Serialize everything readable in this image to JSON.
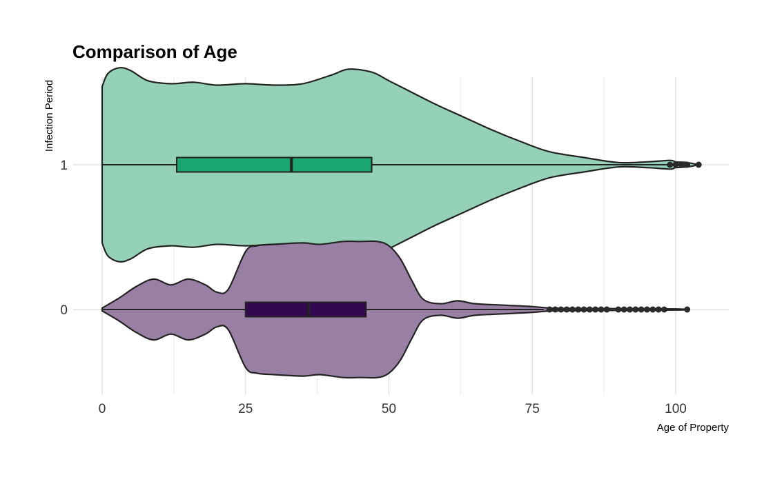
{
  "chart_data": {
    "type": "violin",
    "title": "Comparison of Age",
    "xlabel": "Age of Property",
    "ylabel": "Infection Period",
    "xlim": [
      0,
      109
    ],
    "x_ticks": [
      0,
      25,
      50,
      75,
      100
    ],
    "grid": true,
    "legend": "none",
    "groups": [
      {
        "category": "1",
        "fill": "#94d1b7",
        "box_fill": "#1ba573",
        "box": {
          "whisker_low": 0,
          "q1": 13,
          "median": 33,
          "q3": 47,
          "whisker_high": 99
        },
        "outliers": [
          99,
          100,
          101,
          102,
          104
        ],
        "density": [
          [
            0,
            0.54
          ],
          [
            1,
            0.63
          ],
          [
            3,
            0.67
          ],
          [
            5,
            0.65
          ],
          [
            8,
            0.58
          ],
          [
            12,
            0.56
          ],
          [
            16,
            0.57
          ],
          [
            20,
            0.55
          ],
          [
            25,
            0.56
          ],
          [
            30,
            0.55
          ],
          [
            35,
            0.56
          ],
          [
            40,
            0.62
          ],
          [
            43,
            0.66
          ],
          [
            47,
            0.64
          ],
          [
            50,
            0.58
          ],
          [
            54,
            0.5
          ],
          [
            58,
            0.42
          ],
          [
            63,
            0.33
          ],
          [
            68,
            0.24
          ],
          [
            73,
            0.16
          ],
          [
            78,
            0.09
          ],
          [
            84,
            0.05
          ],
          [
            90,
            0.015
          ],
          [
            95,
            0.02
          ],
          [
            99,
            0.03
          ],
          [
            100,
            0.02
          ],
          [
            102,
            0.015
          ],
          [
            104,
            0.0
          ]
        ]
      },
      {
        "category": "0",
        "fill": "#9a7fa4",
        "box_fill": "#330850",
        "box": {
          "whisker_low": 0,
          "q1": 25,
          "median": 36,
          "q3": 46,
          "whisker_high": 77
        },
        "outliers": [
          78,
          79,
          80,
          81,
          82,
          83,
          84,
          85,
          86,
          87,
          88,
          90,
          91,
          92,
          93,
          94,
          95,
          96,
          97,
          98,
          102
        ],
        "density": [
          [
            0,
            0.01
          ],
          [
            3,
            0.08
          ],
          [
            6,
            0.16
          ],
          [
            9,
            0.21
          ],
          [
            12,
            0.17
          ],
          [
            15,
            0.21
          ],
          [
            18,
            0.17
          ],
          [
            20,
            0.12
          ],
          [
            22,
            0.14
          ],
          [
            25,
            0.4
          ],
          [
            27,
            0.44
          ],
          [
            30,
            0.45
          ],
          [
            35,
            0.46
          ],
          [
            38,
            0.45
          ],
          [
            42,
            0.47
          ],
          [
            45,
            0.47
          ],
          [
            48,
            0.47
          ],
          [
            50,
            0.44
          ],
          [
            52,
            0.35
          ],
          [
            54,
            0.2
          ],
          [
            56,
            0.07
          ],
          [
            59,
            0.04
          ],
          [
            62,
            0.06
          ],
          [
            65,
            0.04
          ],
          [
            70,
            0.03
          ],
          [
            75,
            0.02
          ],
          [
            78,
            0.01
          ],
          [
            80,
            0.008
          ],
          [
            90,
            0.006
          ],
          [
            100,
            0.004
          ],
          [
            102,
            0.0
          ]
        ]
      }
    ]
  }
}
